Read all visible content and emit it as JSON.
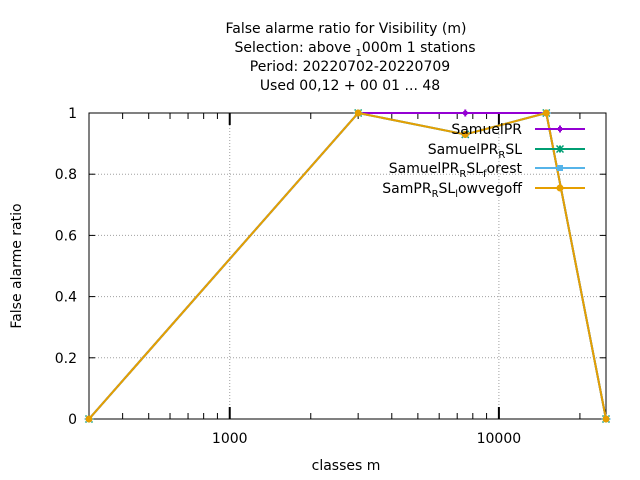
{
  "chart_data": {
    "type": "line",
    "title_lines": [
      "False alarme ratio  for Visibility (m)",
      "Selection: above ",
      "Period: 20220702-20220709",
      "Used  00,12  + 00 01 ... 48"
    ],
    "title_selection": {
      "prefix": "Selection: above ",
      "sub": "1",
      "rest": "000m      1 stations"
    },
    "xlabel": "classes m",
    "ylabel": "False alarme ratio",
    "x_scale": "log",
    "xlim": [
      300,
      25000
    ],
    "ylim": [
      0,
      1
    ],
    "x_tick_labels": [
      {
        "value": 1000,
        "label": "1000"
      },
      {
        "value": 10000,
        "label": "10000"
      }
    ],
    "y_tick_labels": [
      {
        "value": 0,
        "label": "0"
      },
      {
        "value": 0.2,
        "label": "0.2"
      },
      {
        "value": 0.4,
        "label": "0.4"
      },
      {
        "value": 0.6,
        "label": "0.6"
      },
      {
        "value": 0.8,
        "label": "0.8"
      },
      {
        "value": 1,
        "label": "1"
      }
    ],
    "grid": true,
    "legend_position": "top-right",
    "series": [
      {
        "legend": {
          "main": "SamuelPR",
          "parts": []
        },
        "color": "#9400d3",
        "marker": "plus",
        "x": [
          300,
          3000,
          7500,
          15000,
          25000
        ],
        "y": [
          0,
          1,
          1,
          1,
          0
        ]
      },
      {
        "legend": {
          "main": "SamuelPR",
          "parts": [
            [
              "R",
              "sub"
            ],
            [
              "SL",
              "n"
            ]
          ]
        },
        "color": "#009e73",
        "marker": "star",
        "x": [
          300,
          3000,
          7500,
          15000,
          25000
        ],
        "y": [
          0,
          1,
          0.93,
          1,
          0
        ]
      },
      {
        "legend": {
          "main": "SamuelPR",
          "parts": [
            [
              "R",
              "sub"
            ],
            [
              "SL",
              "n"
            ],
            [
              "f",
              "sub"
            ],
            [
              "orest",
              "n"
            ]
          ]
        },
        "color": "#56b4e9",
        "marker": "square",
        "x": [
          300,
          3000,
          7500,
          15000,
          25000
        ],
        "y": [
          0,
          1,
          0.93,
          1,
          0
        ]
      },
      {
        "legend": {
          "main": "SamPR",
          "parts": [
            [
              "R",
              "sub"
            ],
            [
              "SL",
              "n"
            ],
            [
              "l",
              "sub"
            ],
            [
              "owvegoff",
              "n"
            ]
          ]
        },
        "color": "#e69f00",
        "marker": "circle",
        "x": [
          300,
          3000,
          7500,
          15000,
          25000
        ],
        "y": [
          0,
          1,
          0.93,
          1,
          0
        ]
      }
    ]
  }
}
